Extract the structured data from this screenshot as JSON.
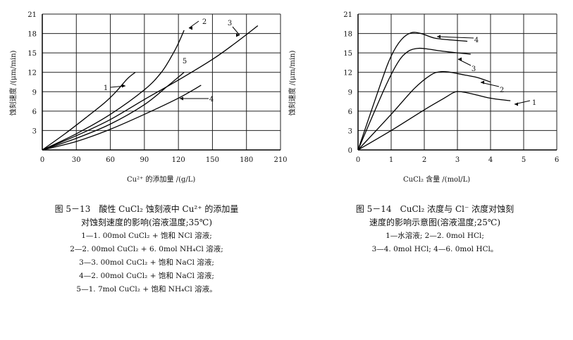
{
  "chart_data": [
    {
      "type": "line",
      "caption_title": "图 5－13　酸性 CuCl₂ 蚀刻液中 Cu²⁺ 的添加量",
      "caption_title_line2": "对蚀刻速度的影响(溶液温度;35℃)",
      "legend_lines": [
        "1—1. 00mol CuCl₂ + 饱和 NCl 溶液;",
        "2—2. 00mol CuCl₂ + 6. 0mol NH₄Cl 溶液;",
        "3—3. 00mol CuCl₂ + 饱和 NaCl 溶液;",
        "4—2. 00mol CuCl₂ + 饱和 NaCl 溶液;",
        "5—1. 7mol CuCl₂ + 饱和 NH₄Cl 溶液。"
      ],
      "xlabel": "Cu²⁺ 的添加量 /(g/L)",
      "ylabel": "蚀刻速度 /(μm/min)",
      "xlim": [
        0,
        210
      ],
      "ylim": [
        0,
        21
      ],
      "xticks": [
        "0",
        "30",
        "60",
        "90",
        "120",
        "150",
        "180",
        "210"
      ],
      "yticks": [
        "3",
        "6",
        "9",
        "12",
        "15",
        "18",
        "21"
      ],
      "grid": true,
      "series": [
        {
          "name": "1",
          "x": [
            0,
            20,
            40,
            55,
            65,
            75,
            82
          ],
          "y": [
            0,
            2.5,
            5.2,
            7.3,
            9.0,
            11.0,
            12.0
          ]
        },
        {
          "name": "2",
          "x": [
            0,
            30,
            60,
            90,
            105,
            115,
            120,
            125
          ],
          "y": [
            0,
            2.5,
            5.5,
            9.3,
            12.0,
            14.8,
            16.5,
            18.5
          ]
        },
        {
          "name": "3",
          "x": [
            0,
            30,
            60,
            90,
            120,
            150,
            170,
            190
          ],
          "y": [
            0,
            2.2,
            4.7,
            7.8,
            10.8,
            14.0,
            16.5,
            19.2
          ]
        },
        {
          "name": "4",
          "x": [
            0,
            30,
            60,
            90,
            120,
            140
          ],
          "y": [
            0,
            1.3,
            3.2,
            5.5,
            8.0,
            10.0
          ]
        },
        {
          "name": "5",
          "x": [
            0,
            30,
            60,
            90,
            110,
            125
          ],
          "y": [
            0,
            1.8,
            4.0,
            7.0,
            9.8,
            12.0
          ]
        }
      ]
    },
    {
      "type": "line",
      "caption_title": "图 5－14　CuCl₂ 浓度与 Cl⁻ 浓度对蚀刻",
      "caption_title_line2": "速度的影响示意图(溶液温度;25℃)",
      "legend_lines": [
        "1—水溶液; 2—2. 0mol HCl;",
        "3—4. 0mol HCl; 4—6. 0mol HCl。"
      ],
      "xlabel": "CuCl₂ 含量 /(mol/L)",
      "ylabel": "蚀刻速度 /(μm/min)",
      "xlim": [
        0,
        6
      ],
      "ylim": [
        0,
        21
      ],
      "xticks": [
        "0",
        "1",
        "2",
        "3",
        "4",
        "5",
        "6"
      ],
      "yticks": [
        "0",
        "3",
        "6",
        "9",
        "12",
        "15",
        "18",
        "21"
      ],
      "grid": true,
      "series": [
        {
          "name": "1",
          "x": [
            0,
            1,
            2,
            2.6,
            2.9,
            3.1,
            3.5,
            4.0,
            4.6
          ],
          "y": [
            0,
            3.0,
            6.2,
            8.0,
            8.9,
            9.0,
            8.6,
            8.0,
            7.6
          ]
        },
        {
          "name": "2",
          "x": [
            0,
            1,
            1.7,
            2.2,
            2.5,
            2.8,
            3.2,
            3.6,
            4.0
          ],
          "y": [
            0,
            5.5,
            9.5,
            11.6,
            12.1,
            12.0,
            11.6,
            11.2,
            10.5
          ]
        },
        {
          "name": "3",
          "x": [
            0,
            0.8,
            1.2,
            1.5,
            1.8,
            2.1,
            2.5,
            3.0,
            3.4
          ],
          "y": [
            0,
            9.5,
            13.5,
            15.2,
            15.7,
            15.6,
            15.3,
            15.0,
            14.8
          ]
        },
        {
          "name": "4",
          "x": [
            0,
            0.7,
            1.0,
            1.3,
            1.6,
            1.9,
            2.3,
            2.8,
            3.3
          ],
          "y": [
            0,
            10.5,
            14.5,
            17.0,
            18.1,
            18.0,
            17.3,
            17.0,
            16.8
          ]
        }
      ]
    }
  ]
}
